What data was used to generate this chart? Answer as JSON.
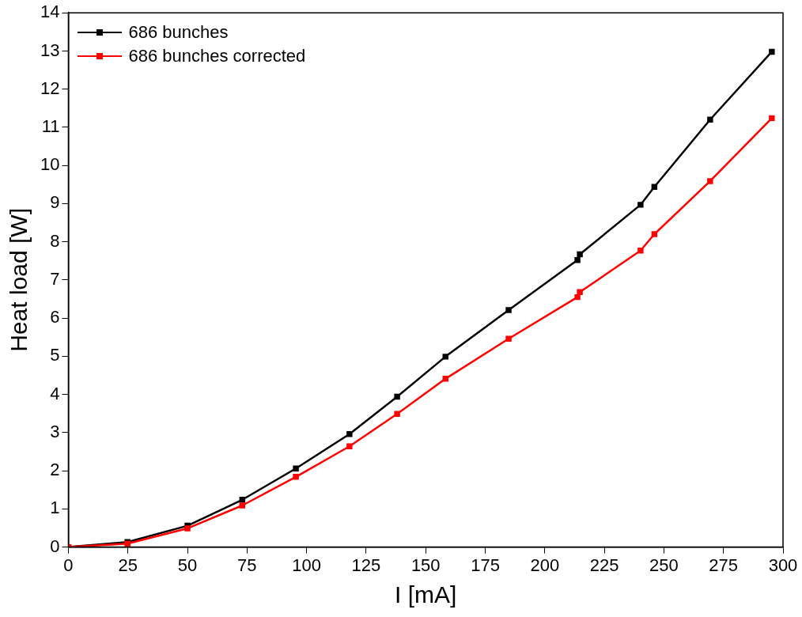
{
  "chart_data": {
    "type": "line",
    "xlabel": "I [mA]",
    "ylabel": "Heat load [W]",
    "xlim": [
      0,
      300
    ],
    "xticks": [
      0,
      25,
      50,
      75,
      100,
      125,
      150,
      175,
      200,
      225,
      250,
      275,
      300
    ],
    "ylim": [
      0,
      14
    ],
    "yticks": [
      0,
      1,
      2,
      3,
      4,
      5,
      6,
      7,
      8,
      9,
      10,
      11,
      12,
      13,
      14
    ],
    "x": [
      0,
      24.8,
      50,
      73,
      95.5,
      118,
      138,
      158.3,
      184.8,
      213.7,
      214.7,
      240.2,
      246,
      269.4,
      295.3
    ],
    "series": [
      {
        "name": "686 bunches",
        "color": "#000000",
        "values": [
          0,
          0.13,
          0.56,
          1.24,
          2.06,
          2.96,
          3.94,
          4.99,
          6.21,
          7.52,
          7.67,
          8.97,
          9.44,
          11.2,
          12.98
        ]
      },
      {
        "name": "686 bunches corrected",
        "color": "#ff0000",
        "values": [
          0,
          0.09,
          0.49,
          1.09,
          1.84,
          2.64,
          3.49,
          4.41,
          5.46,
          6.55,
          6.68,
          7.77,
          8.2,
          9.59,
          11.24
        ]
      }
    ],
    "legend": "top left",
    "marker": "square",
    "line_style": "solid",
    "grid": false
  }
}
